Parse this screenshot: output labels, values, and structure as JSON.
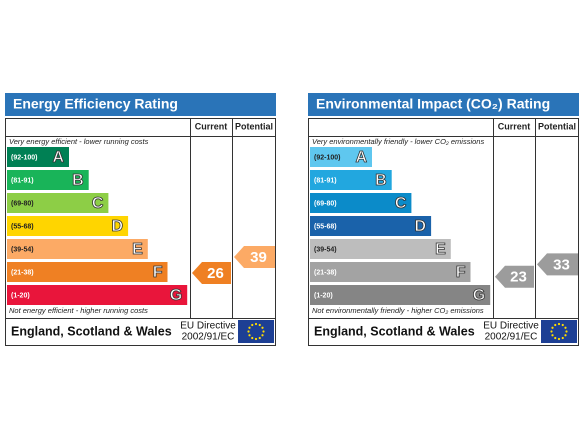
{
  "panels": [
    {
      "title": "Energy Efficiency Rating",
      "columns": [
        "Current",
        "Potential"
      ],
      "top_note": "Very energy efficient - lower running costs",
      "bottom_note": "Not energy efficient - higher running costs",
      "bands": [
        {
          "range": "(92-100)",
          "letter": "A",
          "color": "#008054"
        },
        {
          "range": "(81-91)",
          "letter": "B",
          "color": "#19b459"
        },
        {
          "range": "(69-80)",
          "letter": "C",
          "color": "#8dce46"
        },
        {
          "range": "(55-68)",
          "letter": "D",
          "color": "#ffd500"
        },
        {
          "range": "(39-54)",
          "letter": "E",
          "color": "#fcaa65"
        },
        {
          "range": "(21-38)",
          "letter": "F",
          "color": "#ef8023"
        },
        {
          "range": "(1-20)",
          "letter": "G",
          "color": "#e9153b"
        }
      ],
      "current": {
        "value": 26,
        "color": "#ef8023"
      },
      "potential": {
        "value": 39,
        "color": "#fcaa65"
      },
      "region": "England, Scotland & Wales",
      "directive": [
        "EU Directive",
        "2002/91/EC"
      ]
    },
    {
      "title": "Environmental Impact (CO₂) Rating",
      "columns": [
        "Current",
        "Potential"
      ],
      "top_note": "Very environmentally friendly - lower CO₂ emissions",
      "bottom_note": "Not environmentally friendly - higher CO₂ emissions",
      "bands": [
        {
          "range": "(92-100)",
          "letter": "A",
          "color": "#5fc7ef"
        },
        {
          "range": "(81-91)",
          "letter": "B",
          "color": "#22a7df"
        },
        {
          "range": "(69-80)",
          "letter": "C",
          "color": "#0b8bc9"
        },
        {
          "range": "(55-68)",
          "letter": "D",
          "color": "#1a62aa"
        },
        {
          "range": "(39-54)",
          "letter": "E",
          "color": "#bdbdbd"
        },
        {
          "range": "(21-38)",
          "letter": "F",
          "color": "#a3a3a3"
        },
        {
          "range": "(1-20)",
          "letter": "G",
          "color": "#858585"
        }
      ],
      "current": {
        "value": 23,
        "color": "#9c9c9c"
      },
      "potential": {
        "value": 33,
        "color": "#9c9c9c"
      },
      "region": "England, Scotland & Wales",
      "directive": [
        "EU Directive",
        "2002/91/EC"
      ]
    }
  ]
}
